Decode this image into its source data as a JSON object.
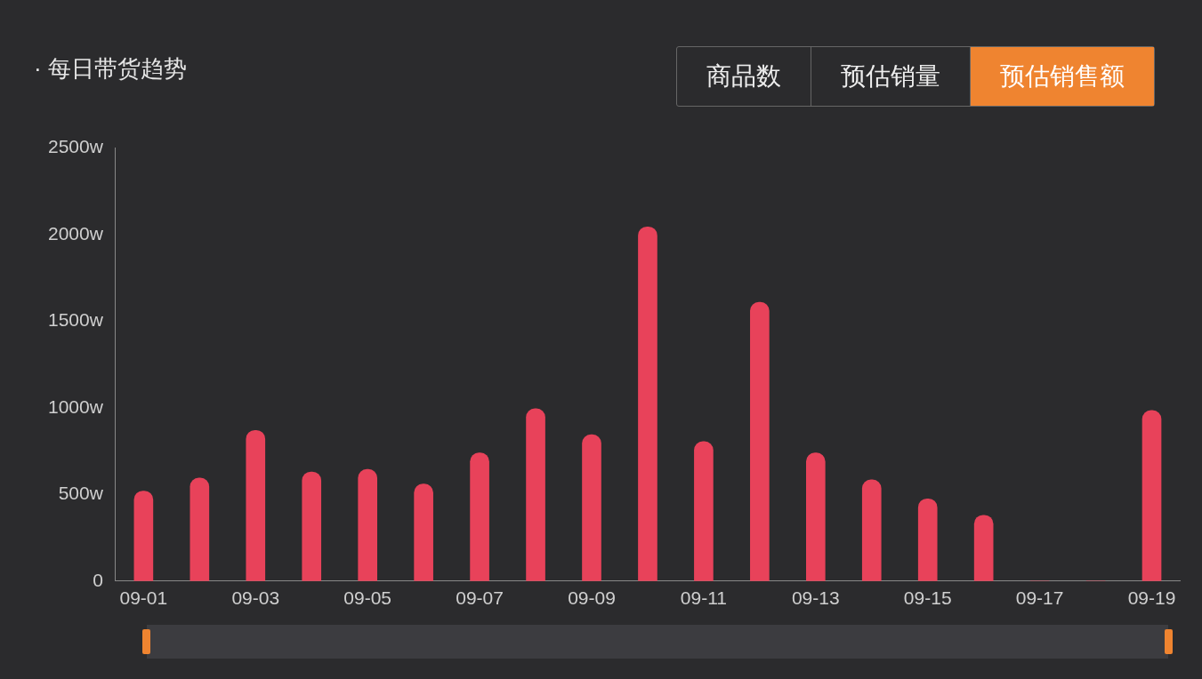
{
  "chart_data": {
    "type": "bar",
    "title": "· 每日带货趋势",
    "annotations": [
      "商品数",
      "预估销量",
      "预估销售额"
    ],
    "categories": [
      "09-01",
      null,
      "09-03",
      null,
      "09-05",
      null,
      "09-07",
      null,
      "09-09",
      null,
      "09-11",
      null,
      "09-13",
      null,
      "09-15",
      null,
      "09-17",
      null,
      "09-19"
    ],
    "series": [
      {
        "color": "#e8425a",
        "values": [
          520,
          595,
          870,
          630,
          645,
          560,
          740,
          995,
          845,
          2045,
          805,
          1610,
          740,
          585,
          475,
          380,
          0,
          0,
          985
        ]
      }
    ],
    "ylim": [
      0,
      2500
    ],
    "yticks": [
      {
        "value": 0,
        "label": "0"
      },
      {
        "value": 500,
        "label": "500w"
      },
      {
        "value": 1000,
        "label": "1000w"
      },
      {
        "value": 1500,
        "label": "1500w"
      },
      {
        "value": 2000,
        "label": "2000w"
      },
      {
        "value": 2500,
        "label": "2500w"
      }
    ],
    "grid": false,
    "legend": false
  }
}
